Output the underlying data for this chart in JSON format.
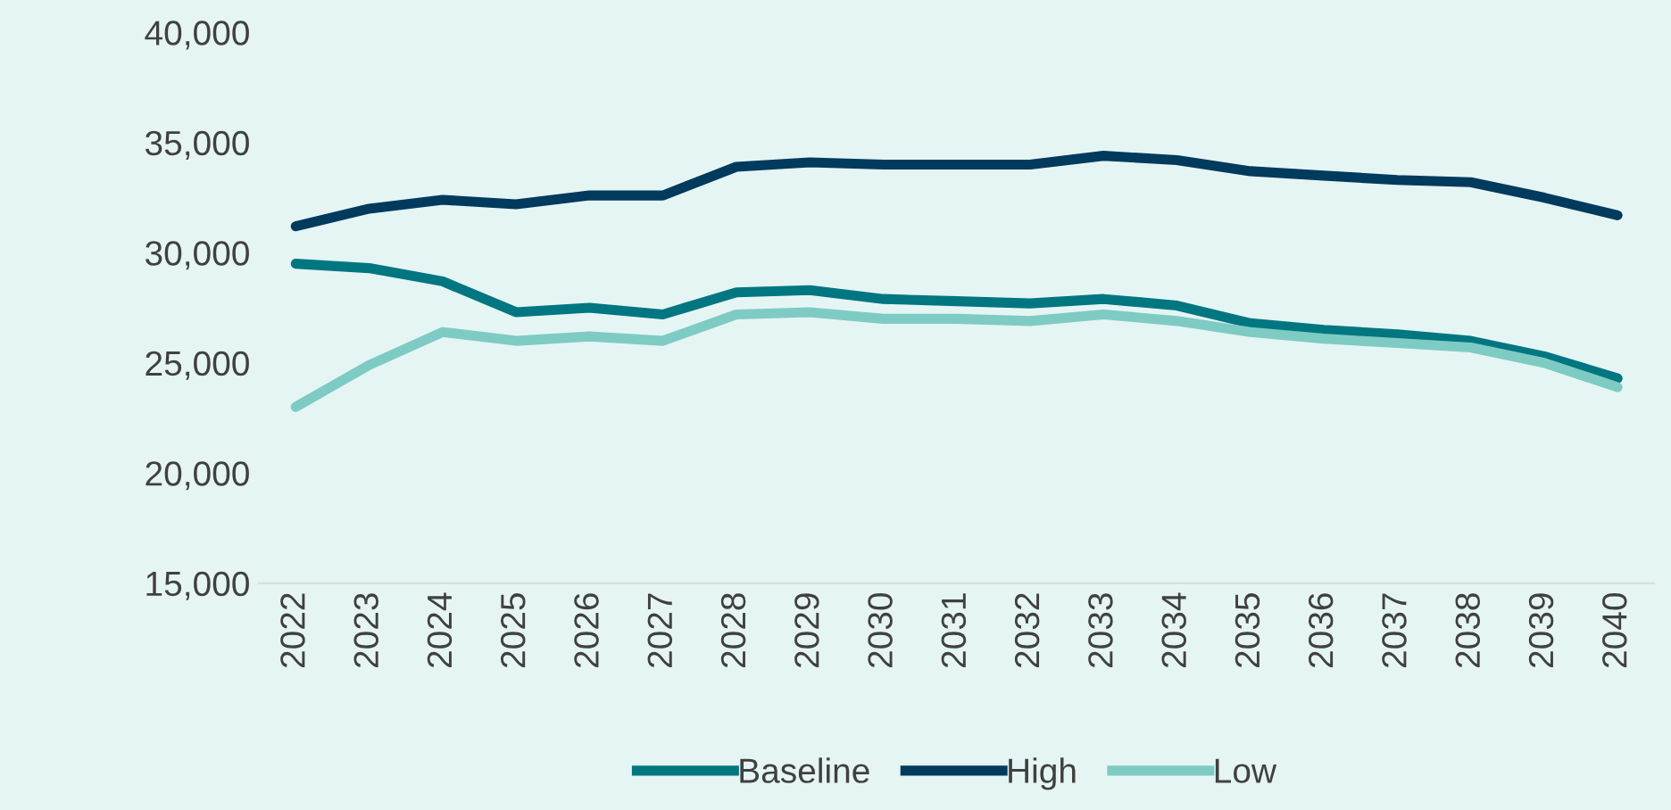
{
  "chart_data": {
    "type": "line",
    "categories": [
      "2022",
      "2023",
      "2024",
      "2025",
      "2026",
      "2027",
      "2028",
      "2029",
      "2030",
      "2031",
      "2032",
      "2033",
      "2034",
      "2035",
      "2036",
      "2037",
      "2038",
      "2039",
      "2040"
    ],
    "series": [
      {
        "name": "Baseline",
        "color": "#007681",
        "values": [
          29500,
          29300,
          28700,
          27300,
          27500,
          27200,
          28200,
          28300,
          27900,
          27800,
          27700,
          27900,
          27600,
          26800,
          26500,
          26300,
          26000,
          25300,
          24300
        ]
      },
      {
        "name": "High",
        "color": "#003a5d",
        "values": [
          31200,
          32000,
          32400,
          32200,
          32600,
          32600,
          33900,
          34100,
          34000,
          34000,
          34000,
          34400,
          34200,
          33700,
          33500,
          33300,
          33200,
          32500,
          31700
        ]
      },
      {
        "name": "Low",
        "color": "#7ecbc4",
        "values": [
          23000,
          24900,
          26400,
          26000,
          26200,
          26000,
          27200,
          27300,
          27000,
          27000,
          26900,
          27200,
          26900,
          26400,
          26100,
          25900,
          25700,
          25000,
          23900
        ]
      }
    ],
    "ylim": [
      15000,
      40000
    ],
    "yticks": [
      {
        "value": 15000,
        "label": "15,000"
      },
      {
        "value": 20000,
        "label": "20,000"
      },
      {
        "value": 25000,
        "label": "25,000"
      },
      {
        "value": 30000,
        "label": "30,000"
      },
      {
        "value": 35000,
        "label": "35,000"
      },
      {
        "value": 40000,
        "label": "40,000"
      }
    ],
    "grid": false,
    "legend": "bottom",
    "marker": "none",
    "line_style": "solid"
  }
}
